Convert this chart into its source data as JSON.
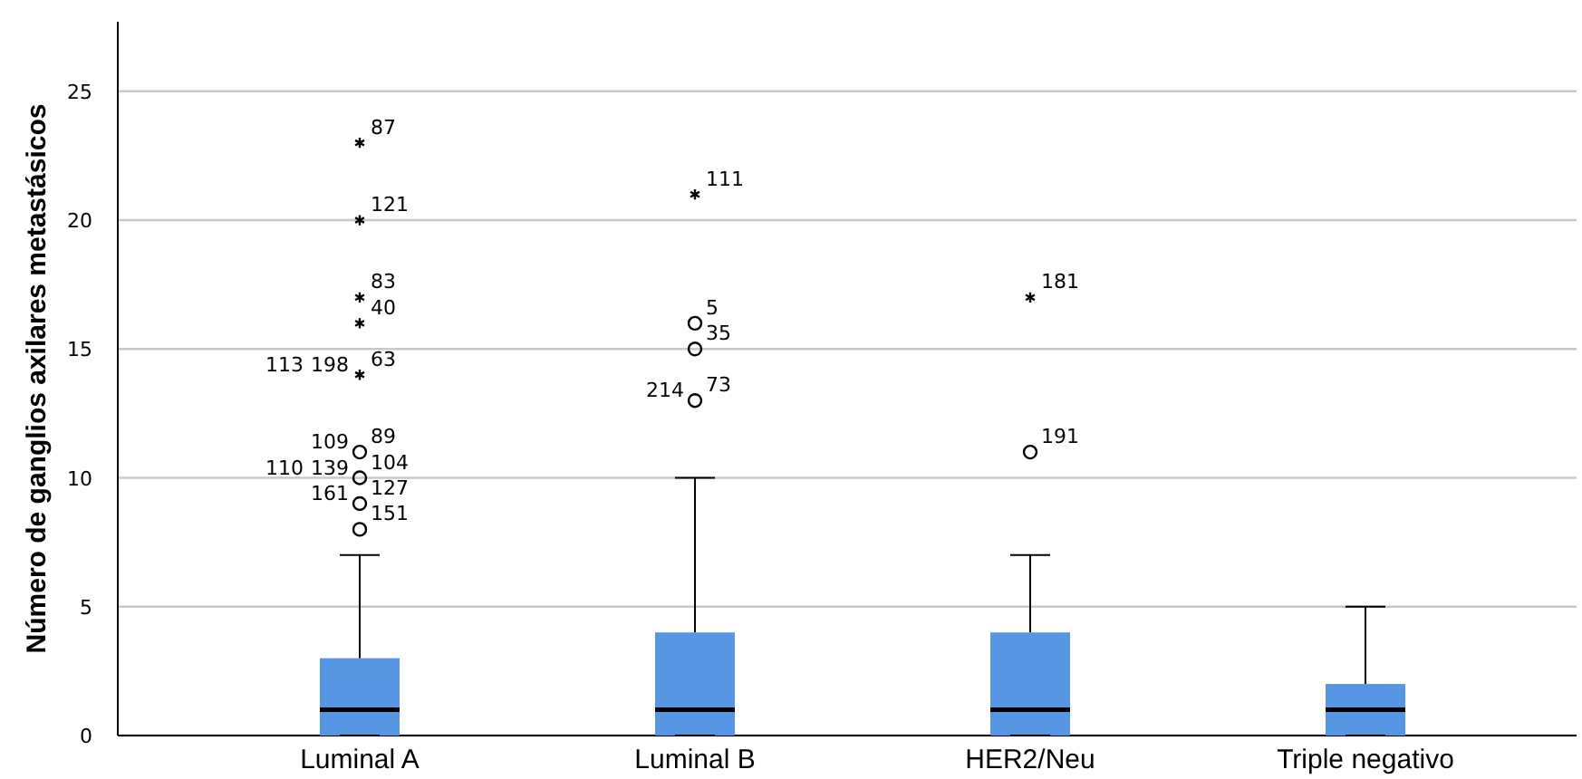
{
  "chart_data": {
    "type": "box",
    "ylabel": "Número de ganglios axilares metastásicos",
    "categories": [
      "Luminal A",
      "Luminal B",
      "HER2/Neu",
      "Triple negativo"
    ],
    "color": "#5796e3",
    "boxes": [
      {
        "low": 0,
        "q1": 0,
        "median": 1,
        "q3": 3,
        "high": 7
      },
      {
        "low": 0,
        "q1": 0,
        "median": 1,
        "q3": 4,
        "high": 10
      },
      {
        "low": 0,
        "q1": 0,
        "median": 1,
        "q3": 4,
        "high": 7
      },
      {
        "low": 0,
        "q1": 0,
        "median": 1,
        "q3": 2,
        "high": 5
      }
    ],
    "series": [
      {
        "type": "scatter",
        "color": "#000000",
        "x": [
          "Luminal A",
          "Luminal A",
          "Luminal A",
          "Luminal A",
          "Luminal A",
          "Luminal A",
          "Luminal A",
          "Luminal A",
          "Luminal A",
          "Luminal B",
          "Luminal B",
          "Luminal B",
          "Luminal B",
          "HER2/Neu",
          "HER2/Neu"
        ],
        "values": [
          23,
          20,
          17,
          16,
          14,
          11,
          10,
          9,
          8,
          21,
          16,
          15,
          13,
          17,
          11
        ]
      }
    ],
    "ylim": [
      0,
      27.7
    ],
    "yticks": [
      0,
      5,
      10,
      15,
      20,
      25
    ],
    "grid": "y",
    "annotations": [
      {
        "text": "87",
        "x": "Luminal A",
        "y": 23
      },
      {
        "text": "121",
        "x": "Luminal A",
        "y": 20
      },
      {
        "text": "83",
        "x": "Luminal A",
        "y": 17
      },
      {
        "text": "40",
        "x": "Luminal A",
        "y": 16
      },
      {
        "text": "63",
        "x": "Luminal A",
        "y": 14
      },
      {
        "text": "198",
        "x": "Luminal A",
        "y": 14
      },
      {
        "text": "113",
        "x": "Luminal A",
        "y": 14
      },
      {
        "text": "89",
        "x": "Luminal A",
        "y": 11
      },
      {
        "text": "109",
        "x": "Luminal A",
        "y": 11
      },
      {
        "text": "104",
        "x": "Luminal A",
        "y": 10
      },
      {
        "text": "139",
        "x": "Luminal A",
        "y": 10
      },
      {
        "text": "110",
        "x": "Luminal A",
        "y": 10
      },
      {
        "text": "127",
        "x": "Luminal A",
        "y": 9
      },
      {
        "text": "161",
        "x": "Luminal A",
        "y": 9
      },
      {
        "text": "151",
        "x": "Luminal A",
        "y": 8
      },
      {
        "text": "111",
        "x": "Luminal B",
        "y": 21
      },
      {
        "text": "5",
        "x": "Luminal B",
        "y": 16
      },
      {
        "text": "35",
        "x": "Luminal B",
        "y": 15
      },
      {
        "text": "73",
        "x": "Luminal B",
        "y": 13
      },
      {
        "text": "214",
        "x": "Luminal B",
        "y": 13
      },
      {
        "text": "181",
        "x": "HER2/Neu",
        "y": 17
      },
      {
        "text": "191",
        "x": "HER2/Neu",
        "y": 11
      }
    ]
  }
}
